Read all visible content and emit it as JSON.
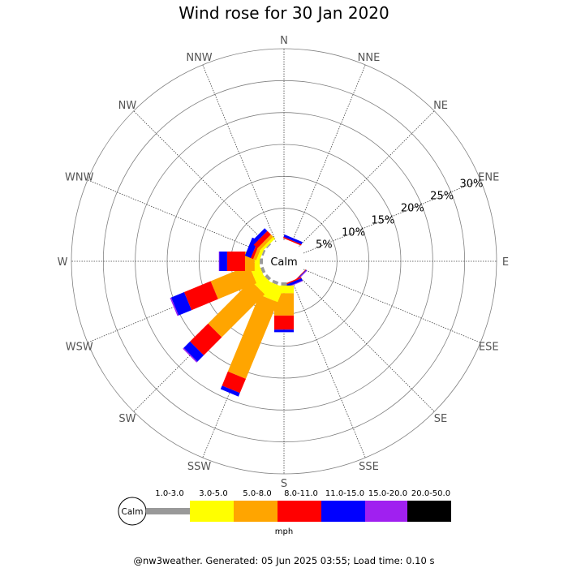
{
  "title": "Wind rose for 30 Jan 2020",
  "footer": "@nw3weather. Generated: 05 Jun 2025 03:55; Load time: 0.10 s",
  "calm_label": "Calm",
  "units": "mph",
  "directions": [
    "N",
    "NNE",
    "NE",
    "ENE",
    "E",
    "ESE",
    "SE",
    "SSE",
    "S",
    "SSW",
    "SW",
    "WSW",
    "W",
    "WNW",
    "NW",
    "NNW"
  ],
  "ring_labels": [
    "5%",
    "10%",
    "15%",
    "20%",
    "25%",
    "30%"
  ],
  "speed_bins": [
    {
      "label": "1.0-3.0",
      "color": "#999999"
    },
    {
      "label": "3.0-5.0",
      "color": "#ffff00"
    },
    {
      "label": "5.0-8.0",
      "color": "#ffa500"
    },
    {
      "label": "8.0-11.0",
      "color": "#ff0000"
    },
    {
      "label": "11.0-15.0",
      "color": "#0000ff"
    },
    {
      "label": "15.0-20.0",
      "color": "#a020f0"
    },
    {
      "label": "20.0-50.0",
      "color": "#000000"
    }
  ],
  "chart_data": {
    "type": "wind_rose",
    "units": "mph",
    "value_units": "%",
    "r_max": 30,
    "ring_step": 5,
    "directions": [
      "N",
      "NNE",
      "NE",
      "ENE",
      "E",
      "ESE",
      "SE",
      "SSE",
      "S",
      "SSW",
      "SW",
      "WSW",
      "W",
      "WNW",
      "NW",
      "NNW"
    ],
    "bins": [
      "1.0-3.0",
      "3.0-5.0",
      "5.0-8.0",
      "8.0-11.0",
      "11.0-15.0",
      "15.0-20.0",
      "20.0-50.0"
    ],
    "frequencies": [
      [
        0,
        0,
        0,
        0,
        0,
        0,
        0
      ],
      [
        0,
        0,
        0,
        0.2,
        0.4,
        0,
        0
      ],
      [
        0,
        0,
        0,
        0,
        0,
        0,
        0
      ],
      [
        0,
        0,
        0,
        0,
        0,
        0,
        0
      ],
      [
        0,
        0,
        0,
        0,
        0,
        0,
        0
      ],
      [
        0,
        0,
        0,
        0,
        0,
        0,
        0
      ],
      [
        0,
        0,
        0,
        0.1,
        0.1,
        0.1,
        0
      ],
      [
        0,
        0,
        0,
        0.2,
        0.4,
        0.1,
        0
      ],
      [
        0.5,
        1.2,
        3.5,
        2.2,
        0.4,
        0,
        0
      ],
      [
        0.5,
        2.5,
        13,
        2.4,
        0.6,
        0,
        0
      ],
      [
        0.5,
        2.0,
        9.5,
        4.0,
        1.4,
        0.2,
        0
      ],
      [
        0.5,
        1.5,
        6.5,
        4.5,
        2.2,
        0.2,
        0
      ],
      [
        0.5,
        0.8,
        1.5,
        2.8,
        1.2,
        0.1,
        0
      ],
      [
        0.3,
        0.5,
        0.5,
        0.4,
        1.0,
        0,
        0
      ],
      [
        0.2,
        0.4,
        0.5,
        0.8,
        0.6,
        0,
        0
      ],
      [
        0,
        0,
        0,
        0,
        0,
        0,
        0
      ]
    ]
  }
}
